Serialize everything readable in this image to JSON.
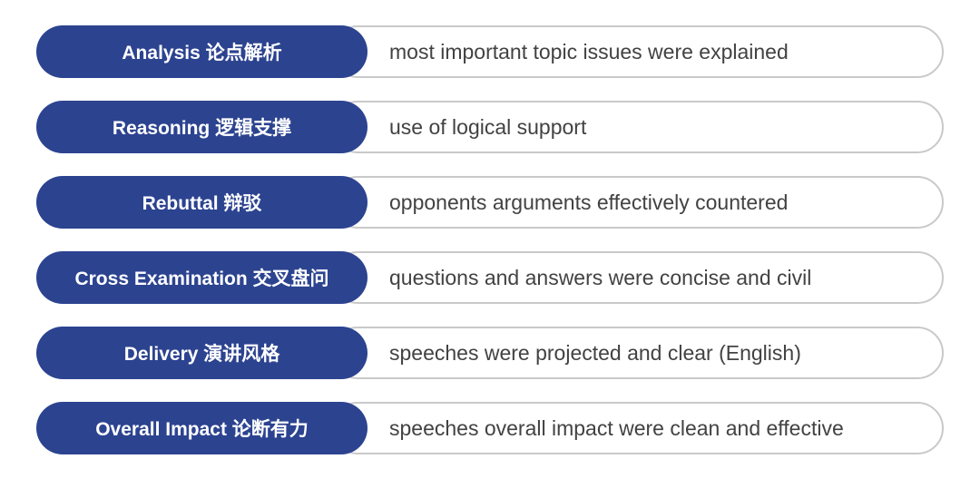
{
  "colors": {
    "pill_bg": "#2c4390",
    "pill_fg": "#ffffff",
    "box_border": "#c9c9c9",
    "desc_fg": "#424242",
    "background": "#ffffff"
  },
  "criteria": [
    {
      "label": "Analysis 论点解析",
      "description": "most important topic issues were explained"
    },
    {
      "label": "Reasoning 逻辑支撑",
      "description": "use of logical support"
    },
    {
      "label": "Rebuttal 辩驳",
      "description": "opponents arguments effectively countered"
    },
    {
      "label": "Cross Examination 交叉盘问",
      "description": "questions and answers were concise and civil"
    },
    {
      "label": "Delivery 演讲风格",
      "description": "speeches were projected and clear (English)"
    },
    {
      "label": "Overall Impact 论断有力",
      "description": "speeches overall impact were clean and effective"
    }
  ]
}
